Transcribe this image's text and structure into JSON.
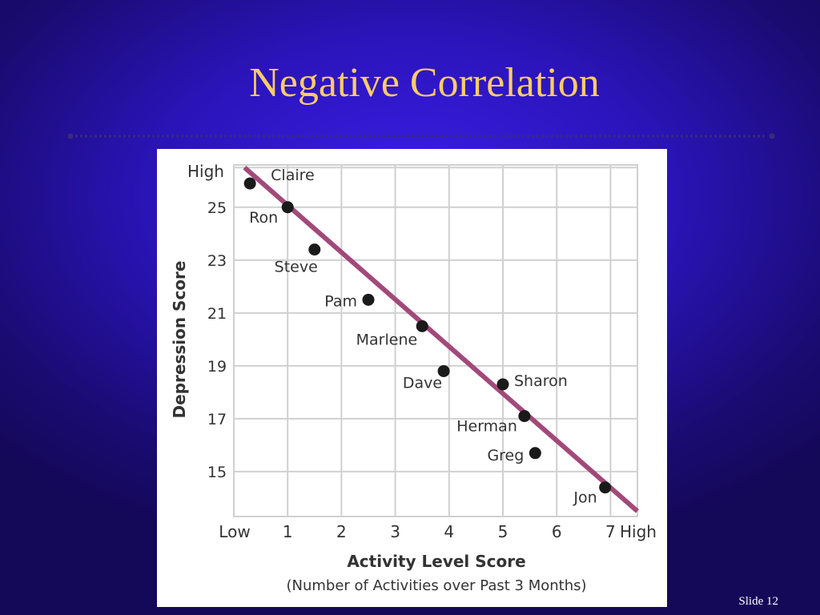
{
  "slide": {
    "title": "Negative Correlation",
    "slide_number": "Slide 12"
  },
  "colors": {
    "title": "#ffcc66",
    "trend_line": "#a2497a",
    "point": "#1a1a1a",
    "grid": "#d0d0d0"
  },
  "chart_data": {
    "type": "scatter",
    "title": "",
    "xlabel": "Activity Level Score",
    "xlabel_sub": "(Number of Activities over Past 3 Months)",
    "ylabel": "Depression Score",
    "xlim": [
      0,
      7.5
    ],
    "ylim": [
      13.3,
      26.6
    ],
    "x_ticks": [
      {
        "value": 0,
        "label": "Low"
      },
      {
        "value": 1,
        "label": "1"
      },
      {
        "value": 2,
        "label": "2"
      },
      {
        "value": 3,
        "label": "3"
      },
      {
        "value": 4,
        "label": "4"
      },
      {
        "value": 5,
        "label": "5"
      },
      {
        "value": 6,
        "label": "6"
      },
      {
        "value": 7,
        "label": "7"
      }
    ],
    "x_high_label": "High",
    "y_ticks": [
      {
        "value": 15,
        "label": "15"
      },
      {
        "value": 17,
        "label": "17"
      },
      {
        "value": 19,
        "label": "19"
      },
      {
        "value": 21,
        "label": "21"
      },
      {
        "value": 23,
        "label": "23"
      },
      {
        "value": 25,
        "label": "25"
      }
    ],
    "y_high_label": "High",
    "grid": true,
    "points": [
      {
        "name": "Claire",
        "x": 0.3,
        "y": 25.9
      },
      {
        "name": "Ron",
        "x": 1.0,
        "y": 25.0
      },
      {
        "name": "Steve",
        "x": 1.5,
        "y": 23.4
      },
      {
        "name": "Pam",
        "x": 2.5,
        "y": 21.5
      },
      {
        "name": "Marlene",
        "x": 3.5,
        "y": 20.5
      },
      {
        "name": "Dave",
        "x": 3.9,
        "y": 18.8
      },
      {
        "name": "Sharon",
        "x": 5.0,
        "y": 18.3
      },
      {
        "name": "Herman",
        "x": 5.4,
        "y": 17.1
      },
      {
        "name": "Greg",
        "x": 5.6,
        "y": 15.7
      },
      {
        "name": "Jon",
        "x": 6.9,
        "y": 14.4
      }
    ],
    "trend_line": {
      "x1": 0.2,
      "y1": 26.5,
      "x2": 7.5,
      "y2": 13.5
    }
  }
}
